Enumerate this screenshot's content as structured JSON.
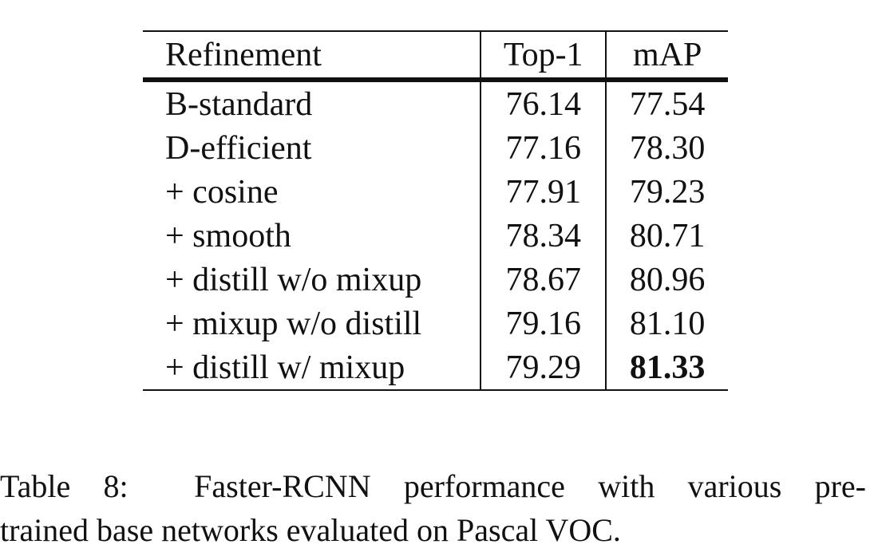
{
  "table": {
    "headers": [
      "Refinement",
      "Top-1",
      "mAP"
    ],
    "rows": [
      {
        "refinement": "B-standard",
        "top1": "76.14",
        "map": "77.54"
      },
      {
        "refinement": "D-efficient",
        "top1": "77.16",
        "map": "78.30"
      },
      {
        "refinement": "+ cosine",
        "top1": "77.91",
        "map": "79.23"
      },
      {
        "refinement": "+ smooth",
        "top1": "78.34",
        "map": "80.71"
      },
      {
        "refinement": "+ distill w/o mixup",
        "top1": "78.67",
        "map": "80.96"
      },
      {
        "refinement": "+ mixup w/o distill",
        "top1": "79.16",
        "map": "81.10"
      },
      {
        "refinement": "+ distill w/ mixup",
        "top1": "79.29",
        "map": "81.33"
      }
    ],
    "bold_cell": {
      "row": 6,
      "column": "map"
    }
  },
  "caption": {
    "label": "Table 8:",
    "line1": "Faster-RCNN performance with various pre-",
    "line2": "trained base networks evaluated on Pascal VOC."
  }
}
